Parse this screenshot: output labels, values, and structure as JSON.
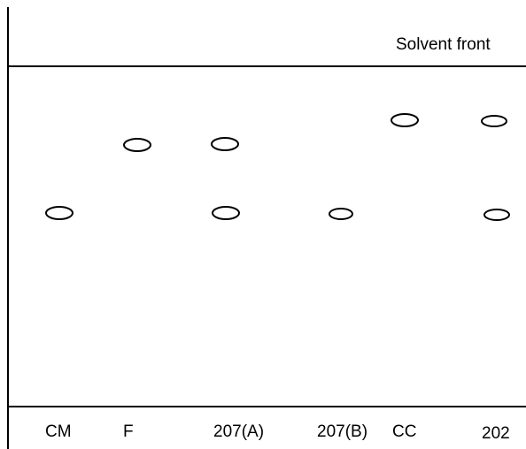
{
  "diagram": {
    "solvent_front_label": "Solvent front",
    "lanes": [
      {
        "label": "CM",
        "spots": 1
      },
      {
        "label": "F",
        "spots": 1
      },
      {
        "label": "207(A)",
        "spots": 2
      },
      {
        "label": "207(B)",
        "spots": 1
      },
      {
        "label": "CC",
        "spots": 1
      },
      {
        "label": "202",
        "spots": 2
      }
    ]
  }
}
